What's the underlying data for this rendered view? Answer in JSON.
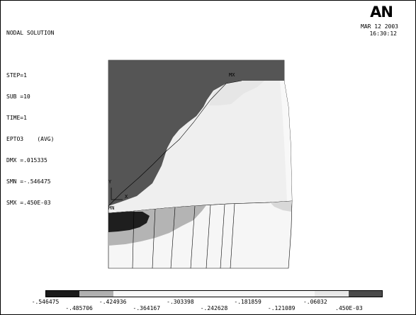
{
  "header": {
    "title": "NODAL SOLUTION",
    "step": "STEP=1",
    "sub": "SUB =10",
    "time": "TIME=1",
    "result": "EPTO3    (AVG)",
    "dmx": "DMX =.015335",
    "smn": "SMN =-.546475",
    "smx": "SMX =.450E-03"
  },
  "branding": {
    "logo": "AN",
    "date": "MAR 12 2003",
    "clock": "16:30:12"
  },
  "model_labels": {
    "mx": "MX",
    "mn": "MN",
    "axis_y": "Y",
    "axis_x": "X"
  },
  "legend": {
    "colors": [
      "#1a1a1a",
      "#b0b0b0",
      "#f8f8f8",
      "#f8f8f8",
      "#f8f8f8",
      "#f8f8f8",
      "#f8f8f8",
      "#f8f8f8",
      "#e8e8e8",
      "#4a4a4a"
    ],
    "labels_top": [
      "-.546475",
      "-.424936",
      "-.303398",
      "-.181859",
      "-.06032"
    ],
    "labels_bottom": [
      "-.485706",
      "-.364167",
      "-.242628",
      "-.121089",
      ".450E-03"
    ]
  },
  "colors": {
    "dark_region": "#555555",
    "mid_region": "#b4b4b4",
    "light_region": "#efefef",
    "min_region": "#1e1e1e"
  }
}
